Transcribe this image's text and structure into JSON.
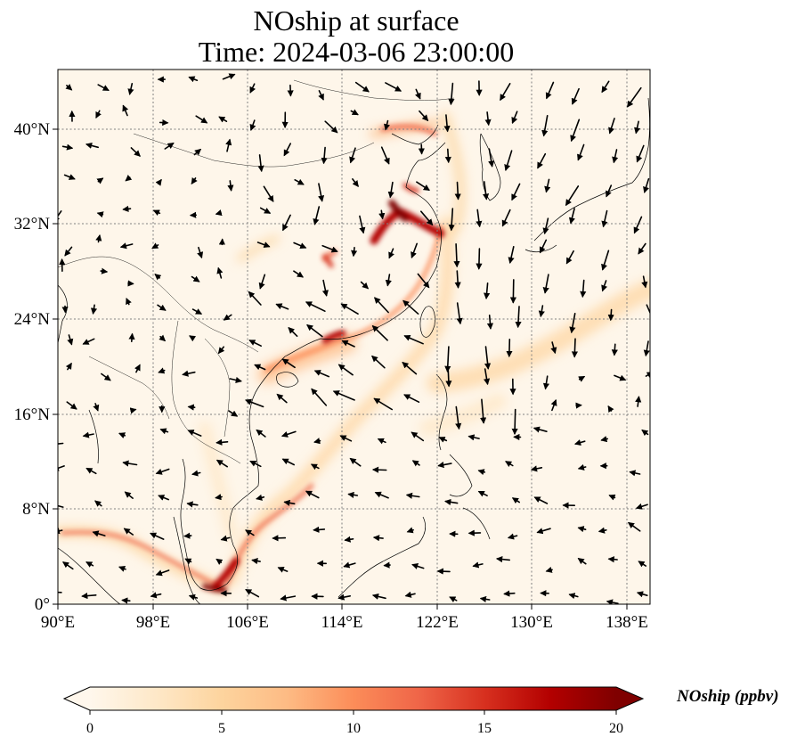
{
  "title": {
    "line1": "NOship at surface",
    "line2": "Time: 2024-03-06 23:00:00"
  },
  "map": {
    "lon_range": [
      90,
      140
    ],
    "lat_range": [
      0,
      45
    ],
    "lon_ticks": [
      "90°E",
      "98°E",
      "106°E",
      "114°E",
      "122°E",
      "130°E",
      "138°E"
    ],
    "lat_ticks": [
      "0°",
      "8°N",
      "16°N",
      "24°N",
      "32°N",
      "40°N"
    ],
    "gridlines": "dotted",
    "background_color": "#fef6ea",
    "wind_vectors": "black arrows"
  },
  "colorbar": {
    "label": "NOship (ppbv)",
    "ticks": [
      "0",
      "5",
      "10",
      "15",
      "20"
    ],
    "min": 0,
    "max": 20,
    "extend": "both",
    "colormap": [
      "#fff7ec",
      "#fee8c8",
      "#fdd49e",
      "#fdbb84",
      "#fc8d59",
      "#ef6548",
      "#d7301f",
      "#b30000",
      "#7f0000"
    ]
  }
}
